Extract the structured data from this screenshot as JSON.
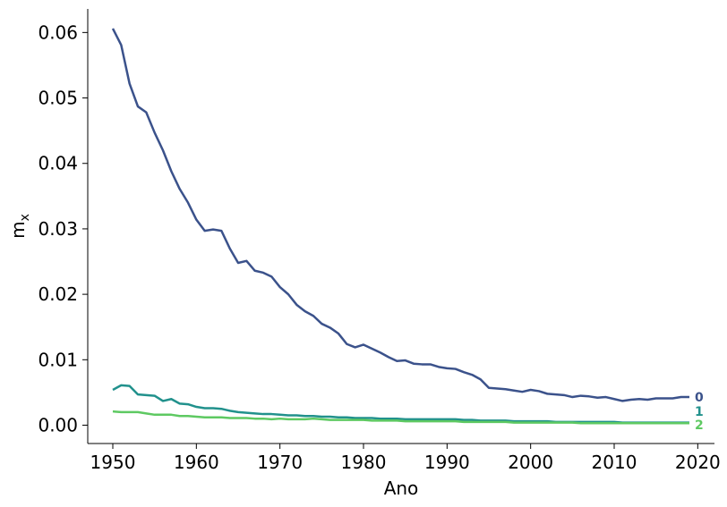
{
  "chart_data": {
    "type": "line",
    "title": "",
    "xlabel": "Ano",
    "ylabel_main": "m",
    "ylabel_sub": "x",
    "xlim": [
      1947,
      2022
    ],
    "ylim": [
      -0.0028,
      0.0636
    ],
    "grid": false,
    "legend": "none",
    "x_ticks": [
      1950,
      1960,
      1970,
      1980,
      1990,
      2000,
      2010,
      2020
    ],
    "x_tick_labels": [
      "1950",
      "1960",
      "1970",
      "1980",
      "1990",
      "2000",
      "2010",
      "2020"
    ],
    "y_ticks": [
      0.0,
      0.01,
      0.02,
      0.03,
      0.04,
      0.05,
      0.06
    ],
    "y_tick_labels": [
      "0.00",
      "0.01",
      "0.02",
      "0.03",
      "0.04",
      "0.05",
      "0.06"
    ],
    "x": [
      1950,
      1951,
      1952,
      1953,
      1954,
      1955,
      1956,
      1957,
      1958,
      1959,
      1960,
      1961,
      1962,
      1963,
      1964,
      1965,
      1966,
      1967,
      1968,
      1969,
      1970,
      1971,
      1972,
      1973,
      1974,
      1975,
      1976,
      1977,
      1978,
      1979,
      1980,
      1981,
      1982,
      1983,
      1984,
      1985,
      1986,
      1987,
      1988,
      1989,
      1990,
      1991,
      1992,
      1993,
      1994,
      1995,
      1996,
      1997,
      1998,
      1999,
      2000,
      2001,
      2002,
      2003,
      2004,
      2005,
      2006,
      2007,
      2008,
      2009,
      2010,
      2011,
      2012,
      2013,
      2014,
      2015,
      2016,
      2017,
      2018,
      2019
    ],
    "series": [
      {
        "end_label": "0",
        "color": "#3b528b",
        "values": [
          0.0606,
          0.0581,
          0.0522,
          0.0487,
          0.0478,
          0.0447,
          0.042,
          0.0388,
          0.0361,
          0.034,
          0.0314,
          0.0297,
          0.0299,
          0.0297,
          0.027,
          0.0248,
          0.0251,
          0.0236,
          0.0233,
          0.0227,
          0.0211,
          0.02,
          0.0184,
          0.0174,
          0.0167,
          0.0155,
          0.0149,
          0.014,
          0.0124,
          0.0119,
          0.0123,
          0.0117,
          0.0111,
          0.0104,
          0.0098,
          0.0099,
          0.0094,
          0.0093,
          0.0093,
          0.0089,
          0.0087,
          0.0086,
          0.0081,
          0.0077,
          0.007,
          0.0057,
          0.0056,
          0.0055,
          0.0053,
          0.0051,
          0.0054,
          0.0052,
          0.0048,
          0.0047,
          0.0046,
          0.0043,
          0.0045,
          0.0044,
          0.0042,
          0.0043,
          0.004,
          0.0037,
          0.0039,
          0.004,
          0.0039,
          0.0041,
          0.0041,
          0.0041,
          0.0043,
          0.0043
        ]
      },
      {
        "end_label": "1",
        "color": "#21918c",
        "values": [
          0.0054,
          0.0061,
          0.006,
          0.0047,
          0.0046,
          0.0045,
          0.0037,
          0.004,
          0.0033,
          0.0032,
          0.0028,
          0.0026,
          0.0026,
          0.0025,
          0.0022,
          0.002,
          0.0019,
          0.0018,
          0.0017,
          0.0017,
          0.0016,
          0.0015,
          0.0015,
          0.0014,
          0.0014,
          0.0013,
          0.0013,
          0.0012,
          0.0012,
          0.0011,
          0.0011,
          0.0011,
          0.001,
          0.001,
          0.001,
          0.0009,
          0.0009,
          0.0009,
          0.0009,
          0.0009,
          0.0009,
          0.0009,
          0.0008,
          0.0008,
          0.0007,
          0.0007,
          0.0007,
          0.0007,
          0.0006,
          0.0006,
          0.0006,
          0.0006,
          0.0006,
          0.0005,
          0.0005,
          0.0005,
          0.0005,
          0.0005,
          0.0005,
          0.0005,
          0.0005,
          0.0004,
          0.0004,
          0.0004,
          0.0004,
          0.0004,
          0.0004,
          0.0004,
          0.0004,
          0.0004
        ]
      },
      {
        "end_label": "2",
        "color": "#5ec962",
        "values": [
          0.0021,
          0.002,
          0.002,
          0.002,
          0.0018,
          0.0016,
          0.0016,
          0.0016,
          0.0014,
          0.0014,
          0.0013,
          0.0012,
          0.0012,
          0.0012,
          0.0011,
          0.0011,
          0.0011,
          0.001,
          0.001,
          0.0009,
          0.001,
          0.0009,
          0.0009,
          0.0009,
          0.001,
          0.0009,
          0.0008,
          0.0008,
          0.0008,
          0.0008,
          0.0008,
          0.0007,
          0.0007,
          0.0007,
          0.0007,
          0.0006,
          0.0006,
          0.0006,
          0.0006,
          0.0006,
          0.0006,
          0.0006,
          0.0005,
          0.0005,
          0.0005,
          0.0005,
          0.0005,
          0.0005,
          0.0004,
          0.0004,
          0.0004,
          0.0004,
          0.0004,
          0.0004,
          0.0004,
          0.0004,
          0.0003,
          0.0003,
          0.0003,
          0.0003,
          0.0003,
          0.0003,
          0.0003,
          0.0003,
          0.0003,
          0.0003,
          0.0003,
          0.0003,
          0.0003,
          0.0003
        ]
      }
    ]
  }
}
